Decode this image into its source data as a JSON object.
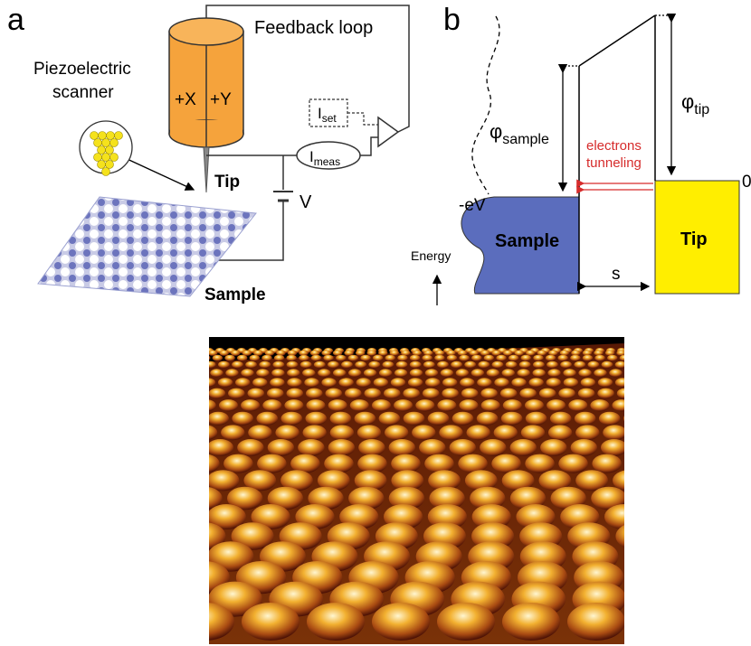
{
  "panel_a": {
    "letter": "a",
    "feedback": "Feedback loop",
    "scanner_line1": "Piezoelectric",
    "scanner_line2": "scanner",
    "plus_x": "+X",
    "plus_y": "+Y",
    "iset_main": "I",
    "iset_sub": "set",
    "imeas_main": "I",
    "imeas_sub": "meas",
    "tip": "Tip",
    "voltage": "V",
    "sample": "Sample"
  },
  "panel_b": {
    "letter": "b",
    "phi_sample_main": "φ",
    "phi_sample_sub": "sample",
    "phi_tip_main": "φ",
    "phi_tip_sub": "tip",
    "tunneling_line1": "electrons",
    "tunneling_line2": "tunneling",
    "neg_ev": "-eV",
    "zero": "0",
    "sample": "Sample",
    "tip": "Tip",
    "energy": "Energy",
    "gap": "s"
  },
  "colors": {
    "piezo": "#f5a33c",
    "sample_block": "#5b6dbd",
    "tip_block": "#ffee00",
    "tunneling": "#d62b2b"
  }
}
